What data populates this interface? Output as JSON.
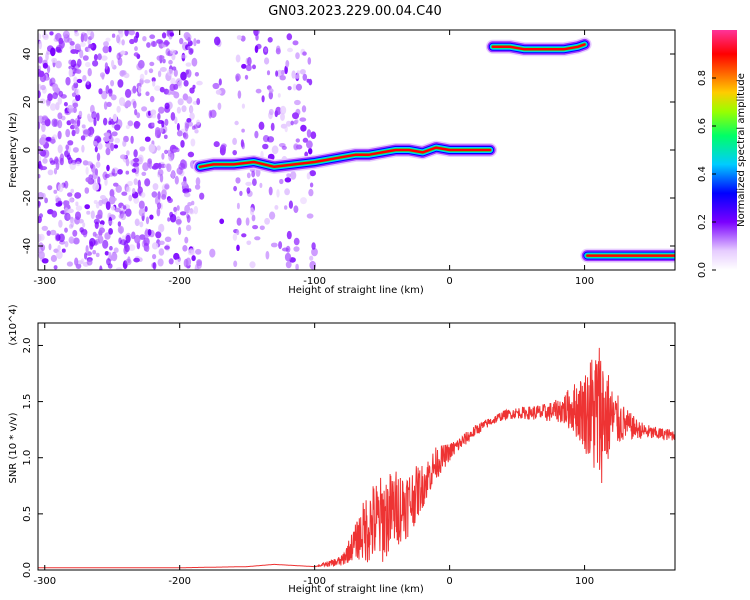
{
  "page_title": "GN03.2023.229.00.04.C40",
  "chart_data": [
    {
      "type": "heatmap",
      "title": "GN03.2023.229.00.04.C40",
      "xlabel": "Height of straight line (km)",
      "ylabel": "Frequency (Hz)",
      "xlim": [
        -305,
        167
      ],
      "ylim": [
        -50,
        50
      ],
      "xticks": [
        -300,
        -200,
        -100,
        0,
        100
      ],
      "yticks": [
        -40,
        -20,
        0,
        20,
        40
      ],
      "colorbar": {
        "label": "Normalized spectral amplitude",
        "range": [
          0,
          1
        ],
        "ticks": [
          "0.0",
          "0.2",
          "0.4",
          "0.6",
          "0.8"
        ],
        "colors": [
          "#ffffff",
          "#cc99ff",
          "#7a00ff",
          "#0000ff",
          "#00ccff",
          "#00ff66",
          "#ccff00",
          "#ff9900",
          "#ff0000",
          "#ff3399"
        ]
      },
      "ridges": [
        {
          "x": [
            -185,
            -175,
            -160,
            -145,
            -130,
            -115,
            -100,
            -90,
            -80,
            -70,
            -60,
            -50,
            -40,
            -30,
            -20,
            -10,
            0,
            10,
            20,
            30
          ],
          "y": [
            -7,
            -6,
            -6,
            -5,
            -7,
            -6,
            -5,
            -4,
            -3,
            -2,
            -2,
            -1,
            0,
            0,
            -1,
            1,
            0,
            0,
            0,
            0
          ]
        },
        {
          "x": [
            32,
            45,
            55,
            65,
            75,
            85,
            95,
            100
          ],
          "y": [
            43,
            43,
            42,
            42,
            42,
            42,
            43,
            44
          ]
        },
        {
          "x": [
            102,
            115,
            125,
            135,
            145,
            155,
            167
          ],
          "y": [
            -44,
            -44,
            -44,
            -44,
            -44,
            -44,
            -44
          ]
        }
      ],
      "noise_region": {
        "x": [
          -305,
          -100
        ],
        "y": [
          -50,
          50
        ]
      }
    },
    {
      "type": "line",
      "xlabel": "Height of straight line (km)",
      "ylabel": "SNR (10 * v/v)",
      "y_multiplier": "(x10^4)",
      "xlim": [
        -305,
        167
      ],
      "ylim": [
        0,
        2.2
      ],
      "xticks": [
        -300,
        -200,
        -100,
        0,
        100
      ],
      "yticks": [
        "0.0",
        "0.5",
        "1.0",
        "1.5",
        "2.0"
      ],
      "series": [
        {
          "color": "#ee3333",
          "x": [
            -305,
            -250,
            -200,
            -150,
            -130,
            -100,
            -80,
            -70,
            -60,
            -50,
            -40,
            -30,
            -20,
            -10,
            0,
            10,
            20,
            30,
            40,
            50,
            60,
            70,
            80,
            90,
            100,
            110,
            115,
            120,
            130,
            140,
            150,
            167
          ],
          "y": [
            0.02,
            0.02,
            0.02,
            0.03,
            0.05,
            0.03,
            0.08,
            0.25,
            0.4,
            0.45,
            0.55,
            0.6,
            0.75,
            0.95,
            1.05,
            1.15,
            1.25,
            1.32,
            1.38,
            1.4,
            1.4,
            1.4,
            1.42,
            1.44,
            1.42,
            1.4,
            1.38,
            1.35,
            1.3,
            1.25,
            1.22,
            1.2
          ],
          "noise_amplitude": [
            0.0,
            0.0,
            0.0,
            0.0,
            0.0,
            0.0,
            0.05,
            0.15,
            0.35,
            0.4,
            0.35,
            0.3,
            0.2,
            0.15,
            0.08,
            0.06,
            0.05,
            0.04,
            0.04,
            0.05,
            0.06,
            0.08,
            0.1,
            0.2,
            0.35,
            0.7,
            0.55,
            0.3,
            0.15,
            0.08,
            0.06,
            0.05
          ]
        }
      ]
    }
  ]
}
